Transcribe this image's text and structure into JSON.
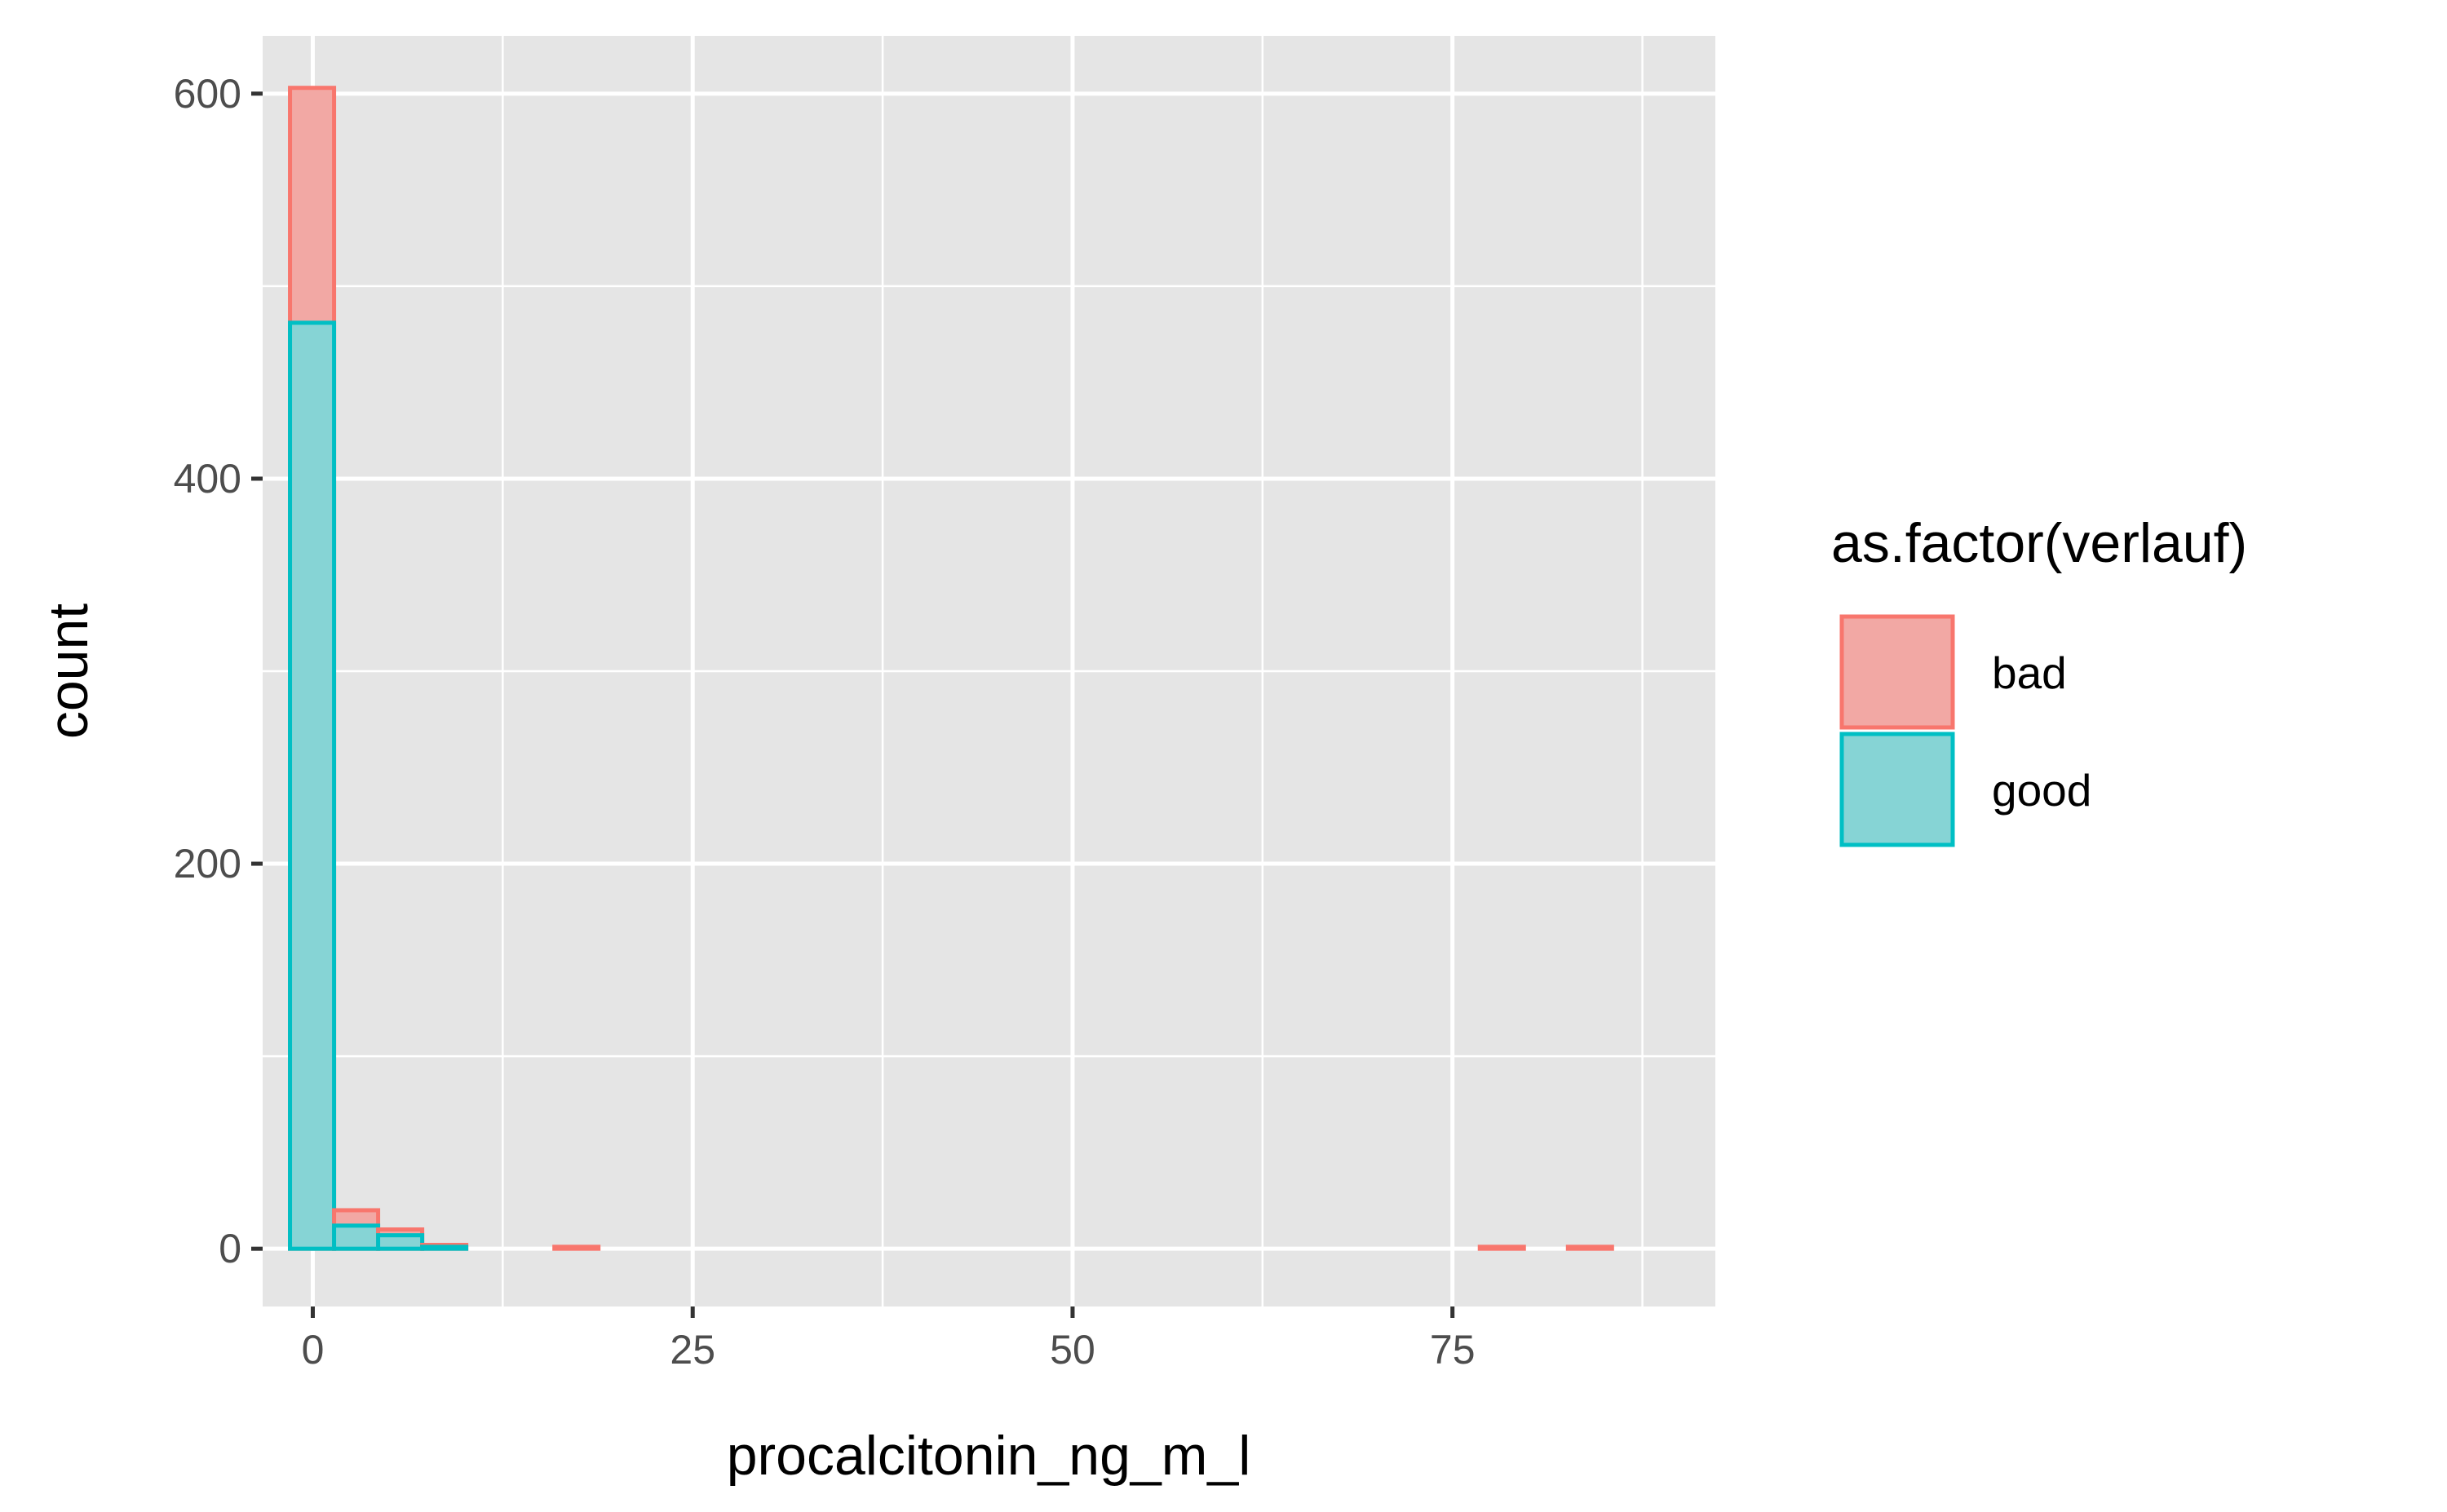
{
  "chart_data": {
    "type": "bar",
    "subtype": "stacked-histogram",
    "xlabel": "procalcitonin_ng_m_l",
    "ylabel": "count",
    "xlim": [
      -3.3,
      92.3
    ],
    "ylim": [
      -30,
      630
    ],
    "x_ticks": [
      0,
      25,
      50,
      75
    ],
    "x_tick_labels": [
      "0",
      "25",
      "50",
      "75"
    ],
    "y_ticks": [
      0,
      200,
      400,
      600
    ],
    "y_tick_labels": [
      "0",
      "200",
      "400",
      "600"
    ],
    "grid": true,
    "legend": {
      "title": "as.factor(verlauf)",
      "position": "right",
      "entries": [
        "bad",
        "good"
      ]
    },
    "bin_width": 2.9,
    "bin_starts": [
      -1.5,
      1.4,
      4.3,
      7.2,
      10.1,
      13.0,
      15.9,
      18.8,
      21.7,
      24.6,
      27.5,
      30.4,
      33.3,
      36.2,
      39.1,
      42.0,
      44.9,
      47.8,
      50.7,
      53.6,
      56.5,
      59.4,
      62.3,
      65.2,
      68.1,
      71.0,
      73.9,
      76.8,
      79.7,
      82.6
    ],
    "series": [
      {
        "name": "bad",
        "color": "#F8766D",
        "values": [
          122,
          8,
          3,
          1,
          0,
          0,
          1,
          0,
          0,
          0,
          0,
          0,
          0,
          0,
          0,
          0,
          0,
          0,
          0,
          0,
          0,
          0,
          0,
          0,
          0,
          0,
          0,
          1,
          0,
          1
        ]
      },
      {
        "name": "good",
        "color": "#00BFC4",
        "values": [
          481,
          12,
          7,
          1,
          0,
          0,
          0,
          0,
          0,
          0,
          0,
          0,
          0,
          0,
          0,
          0,
          0,
          0,
          0,
          0,
          0,
          0,
          0,
          0,
          0,
          0,
          0,
          0,
          0,
          0
        ]
      }
    ]
  }
}
